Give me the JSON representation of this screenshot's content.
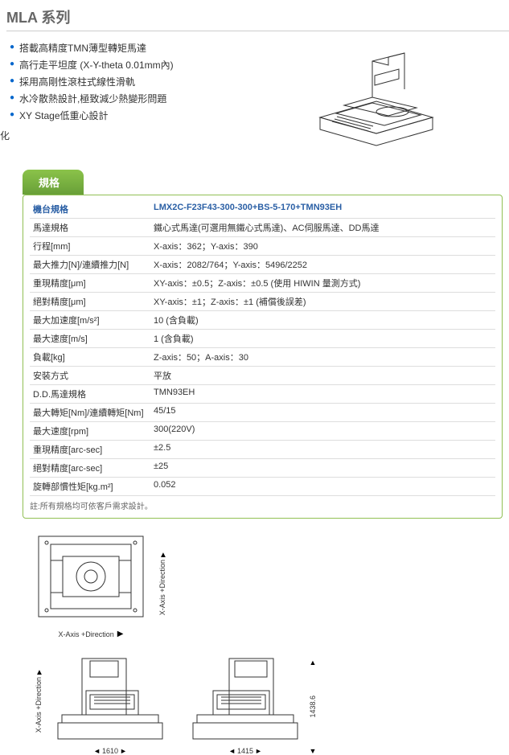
{
  "title": "MLA 系列",
  "features": [
    "搭載高精度TMN薄型轉矩馬達",
    "高行走平坦度 (X-Y-theta 0.01mm內)",
    "採用高剛性滾柱式線性滑軌",
    "水冷散熱設計,極致減少熱變形問題",
    "XY Stage低重心設計"
  ],
  "side_char": "化",
  "tab_label": "規格",
  "spec_rows": [
    {
      "label": "機台規格",
      "value": "LMX2C-F23F43-300-300+BS-5-170+TMN93EH",
      "header": true
    },
    {
      "label": "馬達規格",
      "value": "鐵心式馬達(可選用無鐵心式馬達)、AC伺服馬達、DD馬達"
    },
    {
      "label": "行程[mm]",
      "value": "X-axis：362；Y-axis：390"
    },
    {
      "label": "最大推力[N]/連續推力[N]",
      "value": "X-axis：2082/764；Y-axis：5496/2252"
    },
    {
      "label": "重現精度[μm]",
      "value": "XY-axis：±0.5；Z-axis：±0.5 (使用 HIWIN 量測方式)"
    },
    {
      "label": "絕對精度[μm]",
      "value": "XY-axis：±1；Z-axis：±1 (補償後誤差)"
    },
    {
      "label": "最大加速度[m/s²]",
      "value": "10 (含負載)"
    },
    {
      "label": "最大速度[m/s]",
      "value": "1 (含負載)"
    },
    {
      "label": "負載[kg]",
      "value": "Z-axis：50；A-axis：30"
    },
    {
      "label": "安裝方式",
      "value": "平放"
    },
    {
      "label": "D.D.馬達規格",
      "value": "TMN93EH"
    },
    {
      "label": "最大轉矩[Nm]/連續轉矩[Nm]",
      "value": "45/15"
    },
    {
      "label": "最大速度[rpm]",
      "value": "300(220V)"
    },
    {
      "label": "重現精度[arc-sec]",
      "value": "±2.5"
    },
    {
      "label": "絕對精度[arc-sec]",
      "value": "±25"
    },
    {
      "label": "旋轉部慣性矩[kg.m²]",
      "value": "0.052"
    }
  ],
  "note": "註:所有規格均可依客戶需求設計。",
  "diagram_labels": {
    "x_axis_dir": "X-Axis +Direction",
    "dim_w1": "1610",
    "dim_w2": "1415",
    "dim_h": "1438.6"
  },
  "colors": {
    "title": "#666666",
    "bullet": "#0066cc",
    "tab_bg_top": "#8bc34a",
    "tab_bg_bottom": "#689f38",
    "spec_border": "#91c054",
    "header_text": "#2a5fa5",
    "row_border": "#dddddd"
  }
}
